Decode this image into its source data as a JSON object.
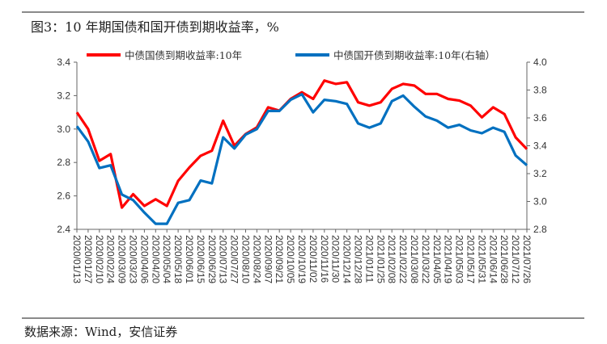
{
  "title": "图3：10 年期国债和国开债到期收益率，%",
  "source": "数据来源：Wind，安信证券",
  "chart_data": {
    "type": "line",
    "title": "图3：10 年期国债和国开债到期收益率，%",
    "x": [
      "2020/01/13",
      "2020/01/27",
      "2020/02/10",
      "2020/02/24",
      "2020/03/09",
      "2020/03/23",
      "2020/04/06",
      "2020/04/20",
      "2020/05/04",
      "2020/05/18",
      "2020/06/01",
      "2020/06/15",
      "2020/06/29",
      "2020/07/13",
      "2020/07/27",
      "2020/08/10",
      "2020/08/24",
      "2020/09/07",
      "2020/09/21",
      "2020/10/05",
      "2020/10/19",
      "2020/11/02",
      "2020/11/16",
      "2020/11/30",
      "2020/12/14",
      "2020/12/28",
      "2021/01/11",
      "2021/01/25",
      "2021/02/08",
      "2021/02/22",
      "2021/03/08",
      "2021/03/22",
      "2021/04/05",
      "2021/04/19",
      "2021/05/03",
      "2021/05/17",
      "2021/05/31",
      "2021/06/14",
      "2021/06/28",
      "2021/07/12",
      "2021/07/26"
    ],
    "series": [
      {
        "name": "中债国债到期收益率:10年",
        "axis": "left",
        "color": "#ff0000",
        "values": [
          3.1,
          3.0,
          2.81,
          2.85,
          2.53,
          2.61,
          2.54,
          2.58,
          2.54,
          2.69,
          2.77,
          2.84,
          2.87,
          3.05,
          2.9,
          2.97,
          3.01,
          3.13,
          3.11,
          3.18,
          3.22,
          3.18,
          3.29,
          3.27,
          3.28,
          3.16,
          3.14,
          3.16,
          3.24,
          3.27,
          3.26,
          3.21,
          3.21,
          3.18,
          3.17,
          3.14,
          3.07,
          3.13,
          3.09,
          2.95,
          2.88
        ]
      },
      {
        "name": "中债国开债到期收益率:10年(右轴）",
        "axis": "right",
        "color": "#0070c0",
        "values": [
          3.54,
          3.43,
          3.24,
          3.26,
          3.05,
          3.01,
          2.92,
          2.84,
          2.84,
          2.99,
          3.01,
          3.15,
          3.13,
          3.46,
          3.38,
          3.48,
          3.52,
          3.65,
          3.65,
          3.73,
          3.77,
          3.64,
          3.73,
          3.72,
          3.7,
          3.56,
          3.53,
          3.56,
          3.72,
          3.76,
          3.68,
          3.61,
          3.58,
          3.53,
          3.55,
          3.51,
          3.49,
          3.53,
          3.5,
          3.33,
          3.26
        ]
      }
    ],
    "left_axis": {
      "ylim": [
        2.4,
        3.4
      ],
      "ticks": [
        "2.4",
        "2.6",
        "2.8",
        "3.0",
        "3.2",
        "3.4"
      ]
    },
    "right_axis": {
      "ylim": [
        2.8,
        4.0
      ],
      "ticks": [
        "2.8",
        "3.0",
        "3.2",
        "3.4",
        "3.6",
        "3.8",
        "4.0"
      ]
    },
    "grid": false,
    "legend_placement": "top"
  }
}
